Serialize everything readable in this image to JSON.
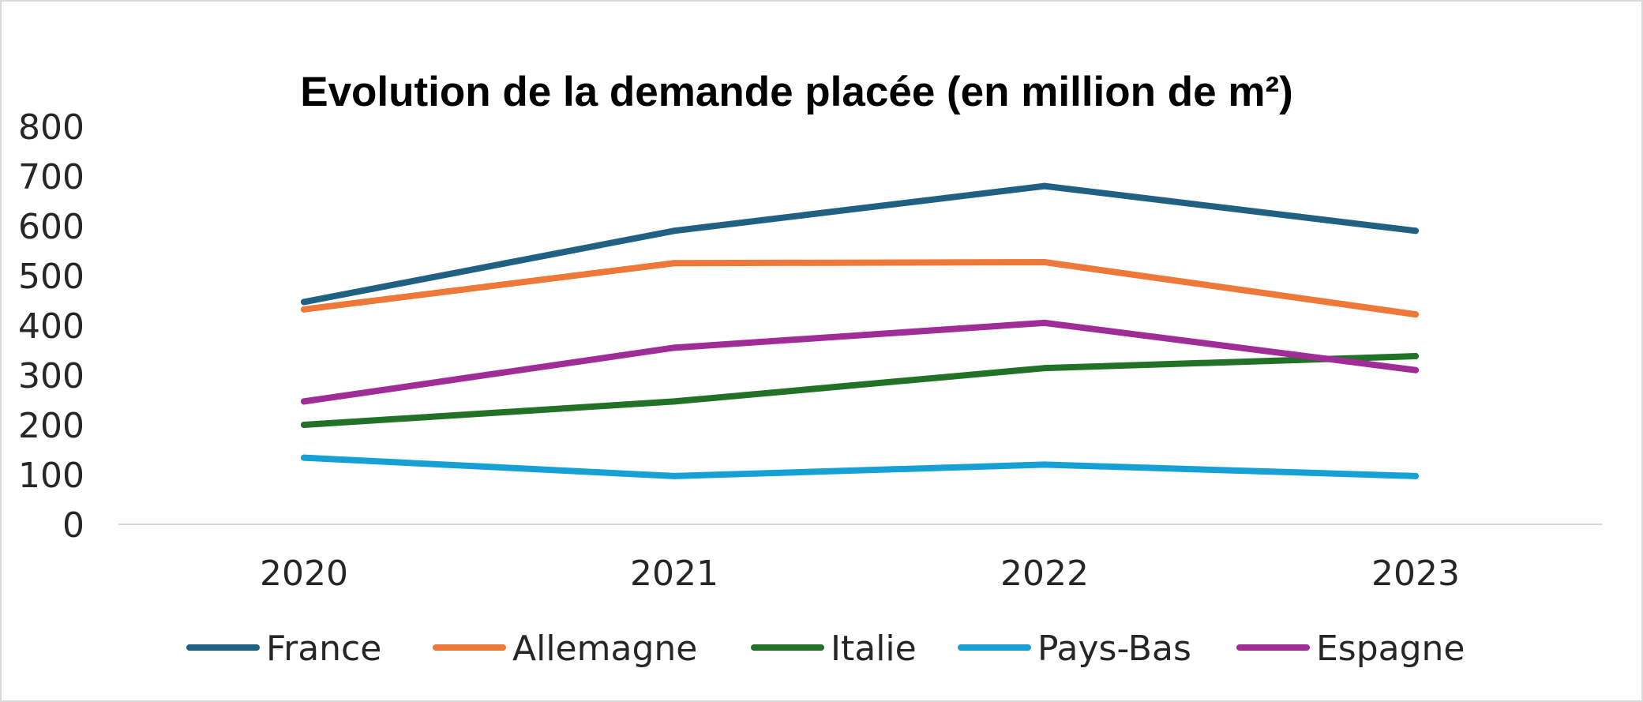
{
  "chart_data": {
    "type": "line",
    "title": "Evolution de la demande placée (en million de m²)",
    "xlabel": "",
    "ylabel": "",
    "categories": [
      "2020",
      "2021",
      "2022",
      "2023"
    ],
    "ylim": [
      0,
      800
    ],
    "yticks": [
      "0",
      "100",
      "200",
      "300",
      "400",
      "500",
      "600",
      "700",
      "800"
    ],
    "grid": false,
    "legend_position": "bottom",
    "series": [
      {
        "name": "France",
        "color": "#1f6083",
        "values": [
          447,
          590,
          680,
          590
        ]
      },
      {
        "name": "Allemagne",
        "color": "#ed7838",
        "values": [
          432,
          525,
          527,
          422
        ]
      },
      {
        "name": "Italie",
        "color": "#217127",
        "values": [
          200,
          247,
          314,
          338
        ]
      },
      {
        "name": "Pays-Bas",
        "color": "#16a0d6",
        "values": [
          134,
          97,
          120,
          97
        ]
      },
      {
        "name": "Espagne",
        "color": "#a02c97",
        "values": [
          247,
          355,
          405,
          310
        ]
      }
    ]
  }
}
